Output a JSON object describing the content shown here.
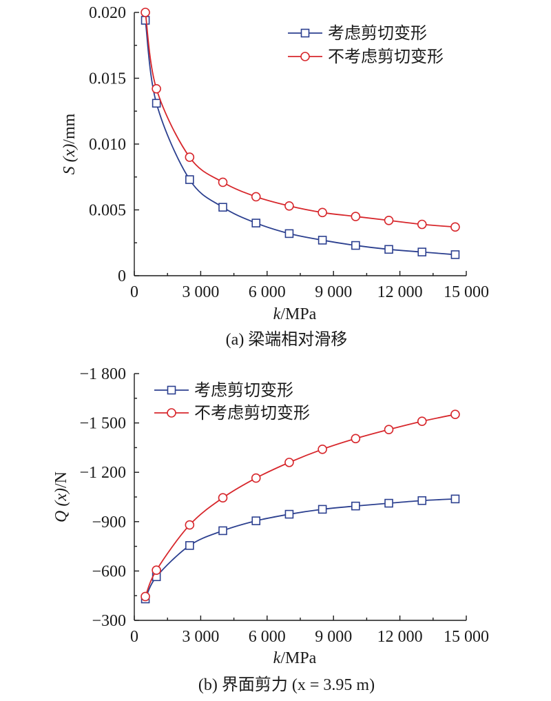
{
  "colors": {
    "shear": "#2b3f8f",
    "no_shear": "#d7262b",
    "axis": "#1a1a1a"
  },
  "chart_data": [
    {
      "type": "line",
      "caption": "(a) 梁端相对滑移",
      "xlabel_italic": "k",
      "xlabel_rest": "/MPa",
      "ylabel_italic": "S (x)",
      "ylabel_rest": "/mm",
      "xlim": [
        0,
        15000
      ],
      "ylim": [
        0,
        0.02
      ],
      "x_ticks": [
        0,
        3000,
        6000,
        9000,
        12000,
        15000
      ],
      "x_tick_labels": [
        "0",
        "3 000",
        "6 000",
        "9 000",
        "12 000",
        "15 000"
      ],
      "y_ticks": [
        0,
        0.005,
        0.01,
        0.015,
        0.02
      ],
      "y_tick_labels": [
        "0",
        "0.005",
        "0.010",
        "0.015",
        "0.020"
      ],
      "legend_position": "top-right",
      "series": [
        {
          "name": "考虑剪切变形",
          "marker": "square",
          "color_key": "shear",
          "x": [
            500,
            1000,
            2500,
            4000,
            5500,
            7000,
            8500,
            10000,
            11500,
            13000,
            14500
          ],
          "y": [
            0.0194,
            0.0131,
            0.0073,
            0.0052,
            0.004,
            0.0032,
            0.0027,
            0.0023,
            0.002,
            0.0018,
            0.0016
          ]
        },
        {
          "name": "不考虑剪切变形",
          "marker": "circle",
          "color_key": "no_shear",
          "x": [
            500,
            1000,
            2500,
            4000,
            5500,
            7000,
            8500,
            10000,
            11500,
            13000,
            14500
          ],
          "y": [
            0.02,
            0.0142,
            0.009,
            0.0071,
            0.006,
            0.0053,
            0.0048,
            0.0045,
            0.0042,
            0.0039,
            0.0037
          ]
        }
      ]
    },
    {
      "type": "line",
      "caption": "(b) 界面剪力 (x = 3.95 m)",
      "xlabel_italic": "k",
      "xlabel_rest": "/MPa",
      "ylabel_italic": "Q (x)",
      "ylabel_rest": "/N",
      "xlim": [
        0,
        15000
      ],
      "ylim": [
        -300,
        -1800
      ],
      "x_ticks": [
        0,
        3000,
        6000,
        9000,
        12000,
        15000
      ],
      "x_tick_labels": [
        "0",
        "3 000",
        "6 000",
        "9 000",
        "12 000",
        "15 000"
      ],
      "y_ticks": [
        -300,
        -600,
        -900,
        -1200,
        -1500,
        -1800
      ],
      "y_tick_labels": [
        "−300",
        "−600",
        "−900",
        "−1 200",
        "−1 500",
        "−1 800"
      ],
      "legend_position": "top-left",
      "series": [
        {
          "name": "考虑剪切变形",
          "marker": "square",
          "color_key": "shear",
          "x": [
            500,
            1000,
            2500,
            4000,
            5500,
            7000,
            8500,
            10000,
            11500,
            13000,
            14500
          ],
          "y": [
            -430,
            -565,
            -755,
            -845,
            -905,
            -945,
            -975,
            -995,
            -1012,
            -1028,
            -1038
          ]
        },
        {
          "name": "不考虑剪切变形",
          "marker": "circle",
          "color_key": "no_shear",
          "x": [
            500,
            1000,
            2500,
            4000,
            5500,
            7000,
            8500,
            10000,
            11500,
            13000,
            14500
          ],
          "y": [
            -445,
            -605,
            -880,
            -1045,
            -1165,
            -1260,
            -1340,
            -1405,
            -1460,
            -1510,
            -1552
          ]
        }
      ]
    }
  ]
}
